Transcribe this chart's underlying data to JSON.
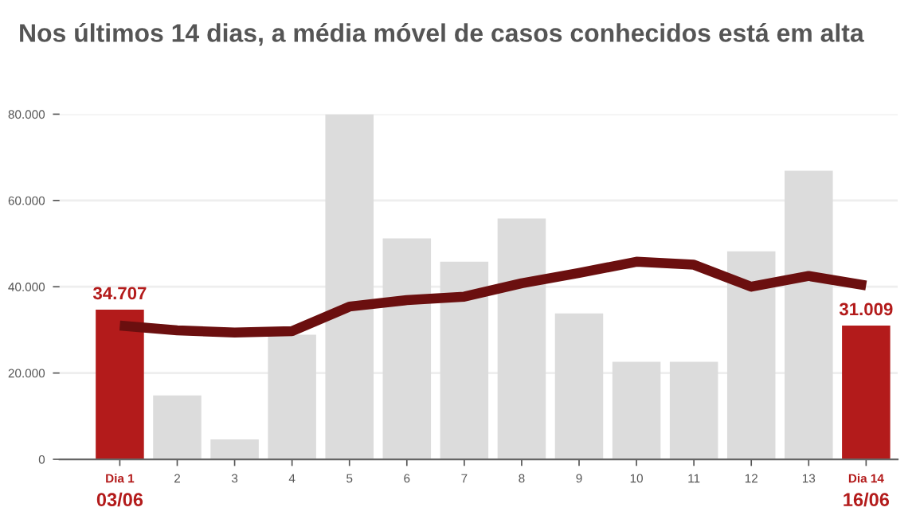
{
  "chart_data": {
    "type": "bar",
    "title": "Nos últimos 14 dias, a média móvel de casos conhecidos está em alta",
    "categories": [
      "Dia 1",
      "2",
      "3",
      "4",
      "5",
      "6",
      "7",
      "8",
      "9",
      "10",
      "11",
      "12",
      "13",
      "Dia 14"
    ],
    "series": [
      {
        "colors": [
          "#b31b1b",
          "#dcdcdc",
          "#dcdcdc",
          "#dcdcdc",
          "#dcdcdc",
          "#dcdcdc",
          "#dcdcdc",
          "#dcdcdc",
          "#dcdcdc",
          "#dcdcdc",
          "#dcdcdc",
          "#dcdcdc",
          "#dcdcdc",
          "#b31b1b"
        ],
        "values": [
          34707,
          14800,
          4600,
          28900,
          80000,
          51200,
          45800,
          55800,
          33800,
          22600,
          22600,
          48200,
          66900,
          31009
        ],
        "value_labels": [
          "34.707",
          null,
          null,
          null,
          null,
          null,
          null,
          null,
          null,
          null,
          null,
          null,
          null,
          "31.009"
        ]
      },
      {
        "type": "line",
        "color": "#6b0f0f",
        "values": [
          31000,
          29900,
          29400,
          29700,
          35400,
          36900,
          37700,
          40800,
          43200,
          45800,
          45100,
          40000,
          42500,
          40300
        ]
      }
    ],
    "annotations": [
      "03/06",
      "16/06"
    ],
    "ylim": [
      0,
      80000
    ],
    "yticks": [
      {
        "value": 0,
        "label": "0"
      },
      {
        "value": 20000,
        "label": "20.000"
      },
      {
        "value": 40000,
        "label": "40.000"
      },
      {
        "value": 60000,
        "label": "60.000"
      },
      {
        "value": 80000,
        "label": "80.000"
      }
    ],
    "grid": "y",
    "legend": false,
    "marker": "none",
    "line_style": "solid"
  }
}
